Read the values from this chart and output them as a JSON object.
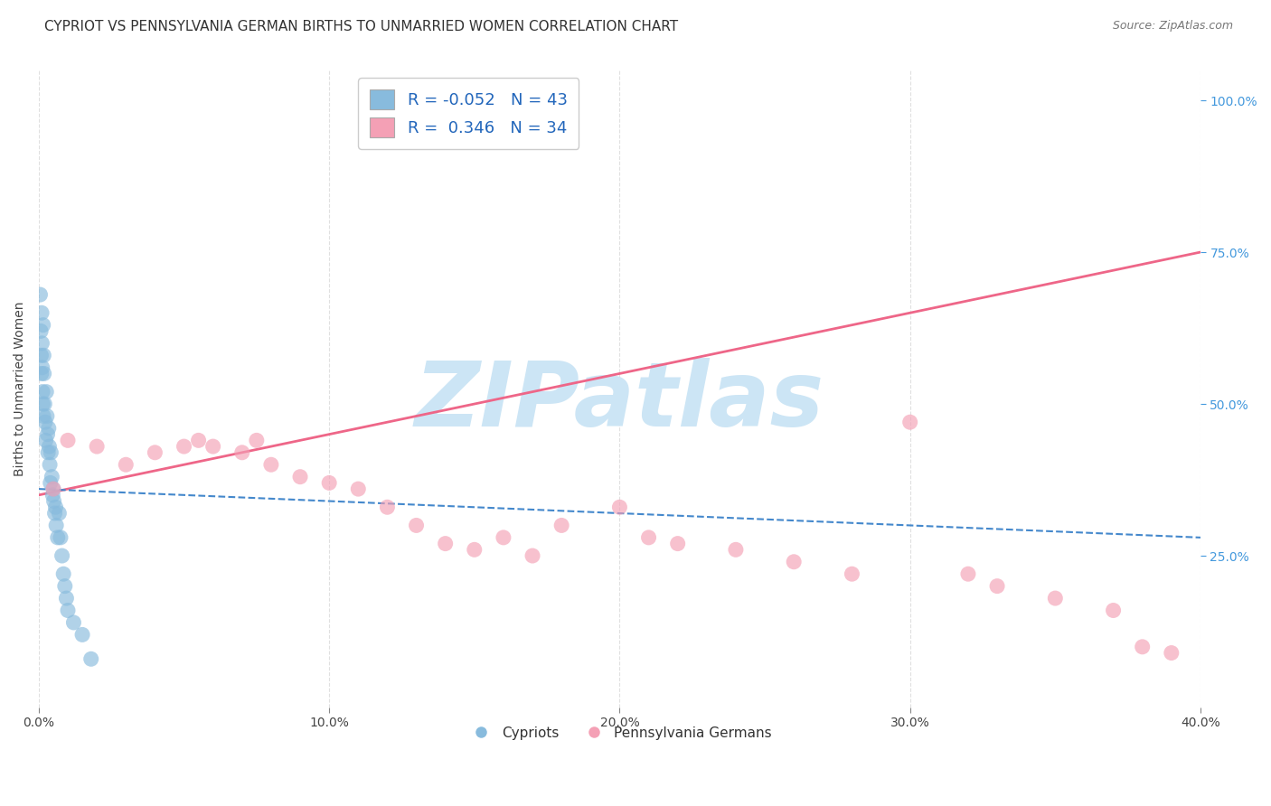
{
  "title": "CYPRIOT VS PENNSYLVANIA GERMAN BIRTHS TO UNMARRIED WOMEN CORRELATION CHART",
  "source": "Source: ZipAtlas.com",
  "ylabel": "Births to Unmarried Women",
  "x_tick_labels": [
    "0.0%",
    "10.0%",
    "20.0%",
    "30.0%",
    "40.0%"
  ],
  "x_tick_values": [
    0.0,
    10.0,
    20.0,
    30.0,
    40.0
  ],
  "y_tick_labels_right": [
    "25.0%",
    "50.0%",
    "75.0%",
    "100.0%"
  ],
  "y_tick_values_right": [
    25.0,
    50.0,
    75.0,
    100.0
  ],
  "xlim": [
    0.0,
    40.0
  ],
  "ylim": [
    0.0,
    105.0
  ],
  "legend_labels": [
    "Cypriots",
    "Pennsylvania Germans"
  ],
  "r_cypriot": -0.052,
  "n_cypriot": 43,
  "r_penn": 0.346,
  "n_penn": 34,
  "blue_color": "#88bbdd",
  "pink_color": "#f4a0b5",
  "blue_line_color": "#4488cc",
  "pink_line_color": "#ee6688",
  "cypriot_x": [
    0.05,
    0.07,
    0.08,
    0.09,
    0.1,
    0.11,
    0.12,
    0.13,
    0.14,
    0.15,
    0.16,
    0.17,
    0.18,
    0.2,
    0.22,
    0.24,
    0.26,
    0.28,
    0.3,
    0.32,
    0.34,
    0.36,
    0.38,
    0.4,
    0.42,
    0.45,
    0.48,
    0.5,
    0.52,
    0.55,
    0.58,
    0.6,
    0.65,
    0.7,
    0.75,
    0.8,
    0.85,
    0.9,
    0.95,
    1.0,
    1.2,
    1.5,
    1.8
  ],
  "cypriot_y": [
    68.0,
    62.0,
    58.0,
    55.0,
    65.0,
    60.0,
    56.0,
    52.0,
    50.0,
    63.0,
    48.0,
    58.0,
    55.0,
    50.0,
    47.0,
    44.0,
    52.0,
    48.0,
    45.0,
    42.0,
    46.0,
    43.0,
    40.0,
    37.0,
    42.0,
    38.0,
    35.0,
    36.0,
    34.0,
    32.0,
    33.0,
    30.0,
    28.0,
    32.0,
    28.0,
    25.0,
    22.0,
    20.0,
    18.0,
    16.0,
    14.0,
    12.0,
    8.0
  ],
  "penn_x": [
    0.5,
    1.0,
    2.0,
    3.0,
    4.0,
    5.0,
    5.5,
    6.0,
    7.0,
    7.5,
    8.0,
    9.0,
    10.0,
    11.0,
    12.0,
    13.0,
    14.0,
    15.0,
    16.0,
    17.0,
    18.0,
    20.0,
    21.0,
    22.0,
    24.0,
    26.0,
    28.0,
    30.0,
    32.0,
    33.0,
    35.0,
    37.0,
    38.0,
    39.0
  ],
  "penn_y": [
    36.0,
    44.0,
    43.0,
    40.0,
    42.0,
    43.0,
    44.0,
    43.0,
    42.0,
    44.0,
    40.0,
    38.0,
    37.0,
    36.0,
    33.0,
    30.0,
    27.0,
    26.0,
    28.0,
    25.0,
    30.0,
    33.0,
    28.0,
    27.0,
    26.0,
    24.0,
    22.0,
    47.0,
    22.0,
    20.0,
    18.0,
    16.0,
    10.0,
    9.0
  ],
  "background_color": "#ffffff",
  "grid_color": "#cccccc",
  "title_fontsize": 11,
  "axis_label_fontsize": 10,
  "tick_fontsize": 10,
  "legend_fontsize": 11,
  "watermark_text": "ZIPatlas",
  "watermark_color": "#cce5f5",
  "watermark_fontsize": 72
}
